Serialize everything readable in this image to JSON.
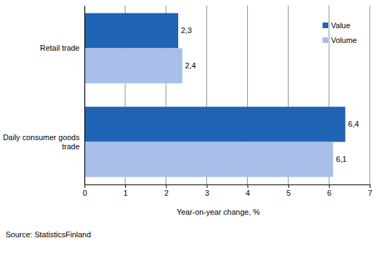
{
  "chart_data": {
    "type": "bar",
    "orientation": "horizontal",
    "categories": [
      "Retail trade",
      "Daily consumer goods trade"
    ],
    "series": [
      {
        "name": "Value",
        "color": "#1f63b5",
        "values": [
          2.3,
          6.4
        ],
        "value_labels": [
          "2,3",
          "6,4"
        ]
      },
      {
        "name": "Volume",
        "color": "#a7bfe9",
        "values": [
          2.4,
          6.1
        ],
        "value_labels": [
          "2,4",
          "6,1"
        ]
      }
    ],
    "x_label": "Year-on-year change, %",
    "source": "Source: StatisticsFinland",
    "xlim": [
      0,
      7
    ],
    "xticks": [
      0,
      1,
      2,
      3,
      4,
      5,
      6,
      7
    ],
    "grid": true,
    "legend": "upper right",
    "data_labels": true
  }
}
